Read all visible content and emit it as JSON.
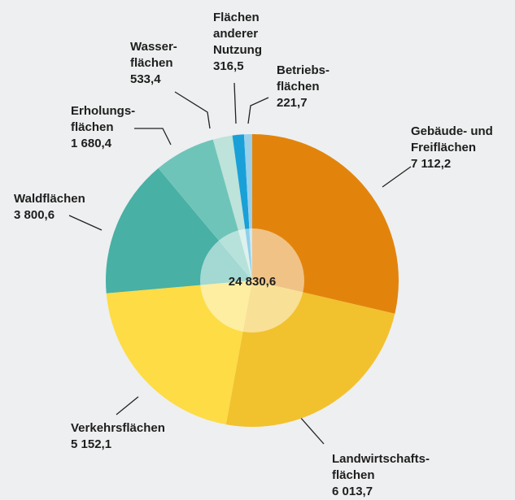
{
  "chart_data": {
    "type": "pie",
    "categories": [
      "Gebäude- und\nFreiflächen",
      "Landwirtschafts-\nflächen",
      "Verkehrsflächen",
      "Waldflächen",
      "Erholungs-\nflächen",
      "Wasser-\nflächen",
      "Flächen\nanderer\nNutzung",
      "Betriebs-\nflächen"
    ],
    "values": [
      7112.2,
      6013.7,
      5152.1,
      3800.6,
      1680.4,
      533.4,
      316.5,
      221.7
    ],
    "value_labels": [
      "7 112,2",
      "6 013,7",
      "5 152,1",
      "3 800,6",
      "1 680,4",
      "533,4",
      "316,5",
      "221,7"
    ],
    "colors": [
      "#e2840c",
      "#f2c12e",
      "#fddc45",
      "#48b0a5",
      "#6fc4b9",
      "#bde3da",
      "#1aa0d8",
      "#9ad0ea"
    ],
    "center_label": "24 830,6"
  }
}
